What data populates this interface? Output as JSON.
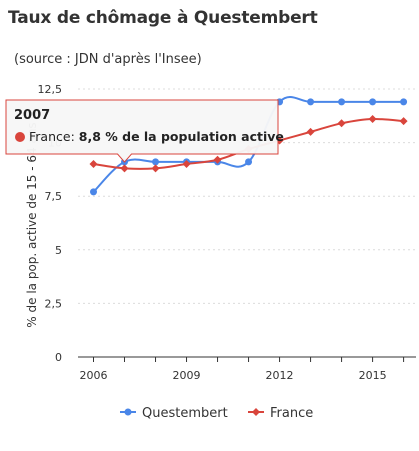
{
  "header": {
    "title": "Taux de chômage à Questembert",
    "subtitle": "(source : JDN d'après l'Insee)"
  },
  "chart_data": {
    "type": "line",
    "ylabel": "% de la pop. active de 15 - 64 ans",
    "ylim": [
      0,
      12.5
    ],
    "yticks": [
      "0",
      "2,5",
      "5",
      "7,5",
      "10",
      "12,5"
    ],
    "xticks": [
      "2006",
      "2009",
      "2012",
      "2015"
    ],
    "x": [
      2006,
      2007,
      2008,
      2009,
      2010,
      2011,
      2012,
      2013,
      2014,
      2015,
      2016
    ],
    "series": [
      {
        "name": "Questembert",
        "color": "#4a86e8",
        "marker": "circle",
        "values": [
          7.7,
          9.1,
          9.1,
          9.1,
          9.1,
          9.1,
          11.9,
          11.9,
          11.9,
          11.9,
          11.9
        ]
      },
      {
        "name": "France",
        "color": "#d9453c",
        "marker": "diamond",
        "values": [
          9.0,
          8.8,
          8.8,
          9.0,
          9.2,
          9.7,
          10.1,
          10.5,
          10.9,
          11.1,
          11.0
        ]
      }
    ],
    "grid": true,
    "legend": "bottom",
    "tooltip": {
      "title": "2007",
      "series_label": "France: ",
      "value_text": "8,8 % de la population active",
      "color": "#d9453c"
    }
  }
}
